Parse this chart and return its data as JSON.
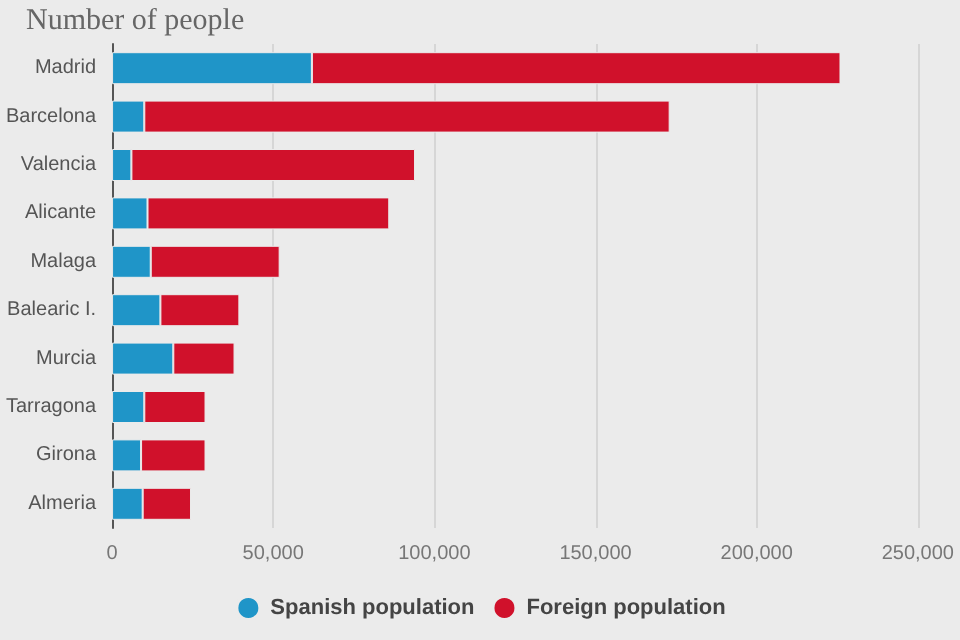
{
  "chart_data": {
    "type": "bar",
    "title": "Number of people",
    "orientation": "horizontal",
    "stacked": true,
    "categories": [
      "Madrid",
      "Barcelona",
      "Valencia",
      "Alicante",
      "Malaga",
      "Balearic I.",
      "Murcia",
      "Tarragona",
      "Girona",
      "Almeria"
    ],
    "series": [
      {
        "name": "Spanish population",
        "color": "#1f95c8",
        "values": [
          62000,
          10000,
          6000,
          11000,
          12000,
          15000,
          19000,
          10000,
          9000,
          9500
        ]
      },
      {
        "name": "Foreign population",
        "color": "#d0112b",
        "values": [
          164000,
          163000,
          88000,
          75000,
          40000,
          24500,
          19000,
          19000,
          20000,
          15000
        ]
      }
    ],
    "xlim": [
      0,
      250000
    ],
    "xticks": [
      0,
      {
        "value": 50000,
        "label": "50,000"
      },
      {
        "value": 100000,
        "label": "100,000"
      },
      {
        "value": 150000,
        "label": "150,000"
      },
      {
        "value": 200000,
        "label": "200,000"
      },
      {
        "value": 250000,
        "label": "250,000"
      }
    ],
    "grid": "x",
    "legend": "bottom"
  }
}
